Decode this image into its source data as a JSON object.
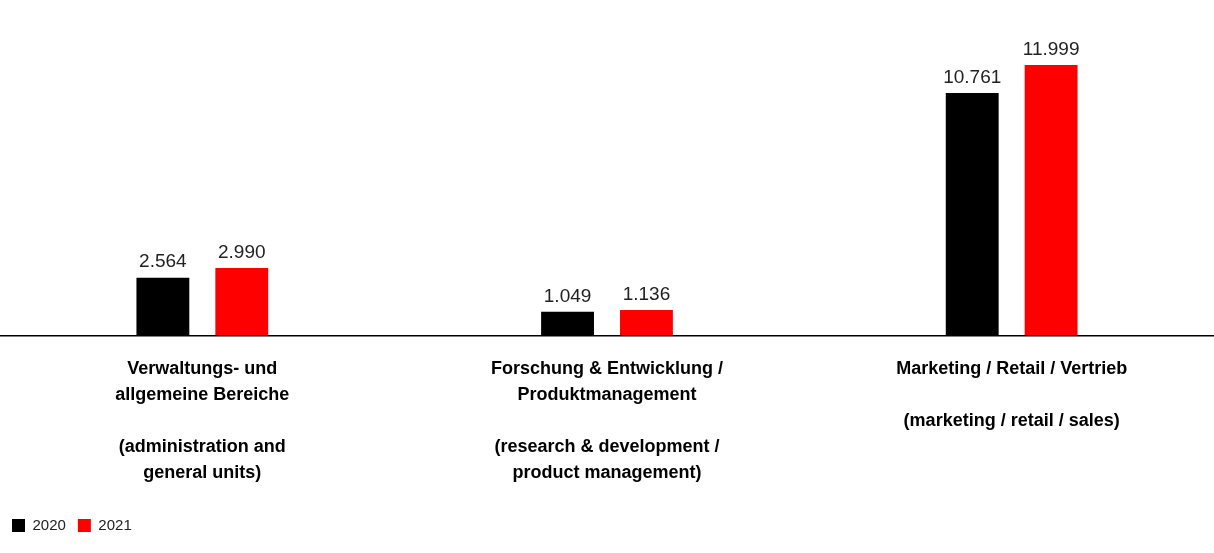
{
  "chart_data": {
    "type": "bar",
    "categories": [
      "Verwaltungs- und\nallgemeine Bereiche\n\n(administration and\ngeneral units)",
      "Forschung & Entwicklung /\nProduktmanagement\n\n(research & development /\nproduct management)",
      "Marketing / Retail / Vertrieb\n\n(marketing / retail / sales)"
    ],
    "series": [
      {
        "name": "2020",
        "color": "#000000",
        "values": [
          2564,
          1049,
          10761
        ],
        "value_labels": [
          "2.564",
          "1.049",
          "10.761"
        ]
      },
      {
        "name": "2021",
        "color": "#ff0000",
        "values": [
          2990,
          1136,
          11999
        ],
        "value_labels": [
          "2.990",
          "1.136",
          "11.999"
        ]
      }
    ],
    "legend": "bottom left"
  }
}
